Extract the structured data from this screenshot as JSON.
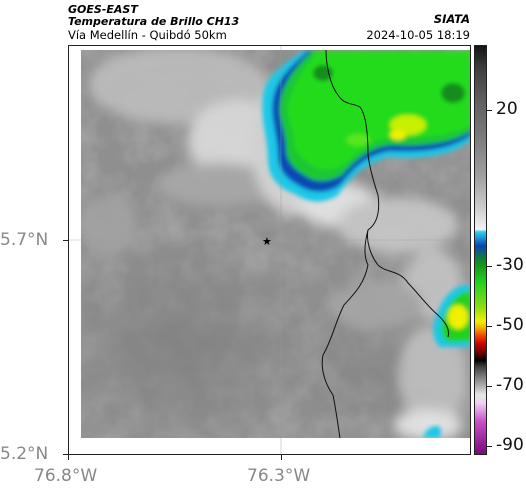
{
  "header": {
    "satellite": "GOES-EAST",
    "product": "Temperatura de Brillo CH13",
    "region": "Vía Medellín - Quibdó 50km",
    "organization": "SIATA",
    "timestamp": "2024-10-05 18:19"
  },
  "axes": {
    "lat_labels": [
      "5.7°N",
      "5.2°N"
    ],
    "lon_labels": [
      "76.8°W",
      "76.3°W"
    ]
  },
  "colorbar": {
    "tick_labels": [
      "20",
      "-30",
      "-50",
      "-70",
      "-90"
    ]
  },
  "marker": {
    "symbol": "★"
  },
  "colors": {
    "cloud_green": "#23d21e",
    "cloud_yellow": "#f0f000",
    "cloud_cyan": "#1ec8e6",
    "cloud_blue": "#0a46b4",
    "background_gray": "#8c8c8c"
  }
}
